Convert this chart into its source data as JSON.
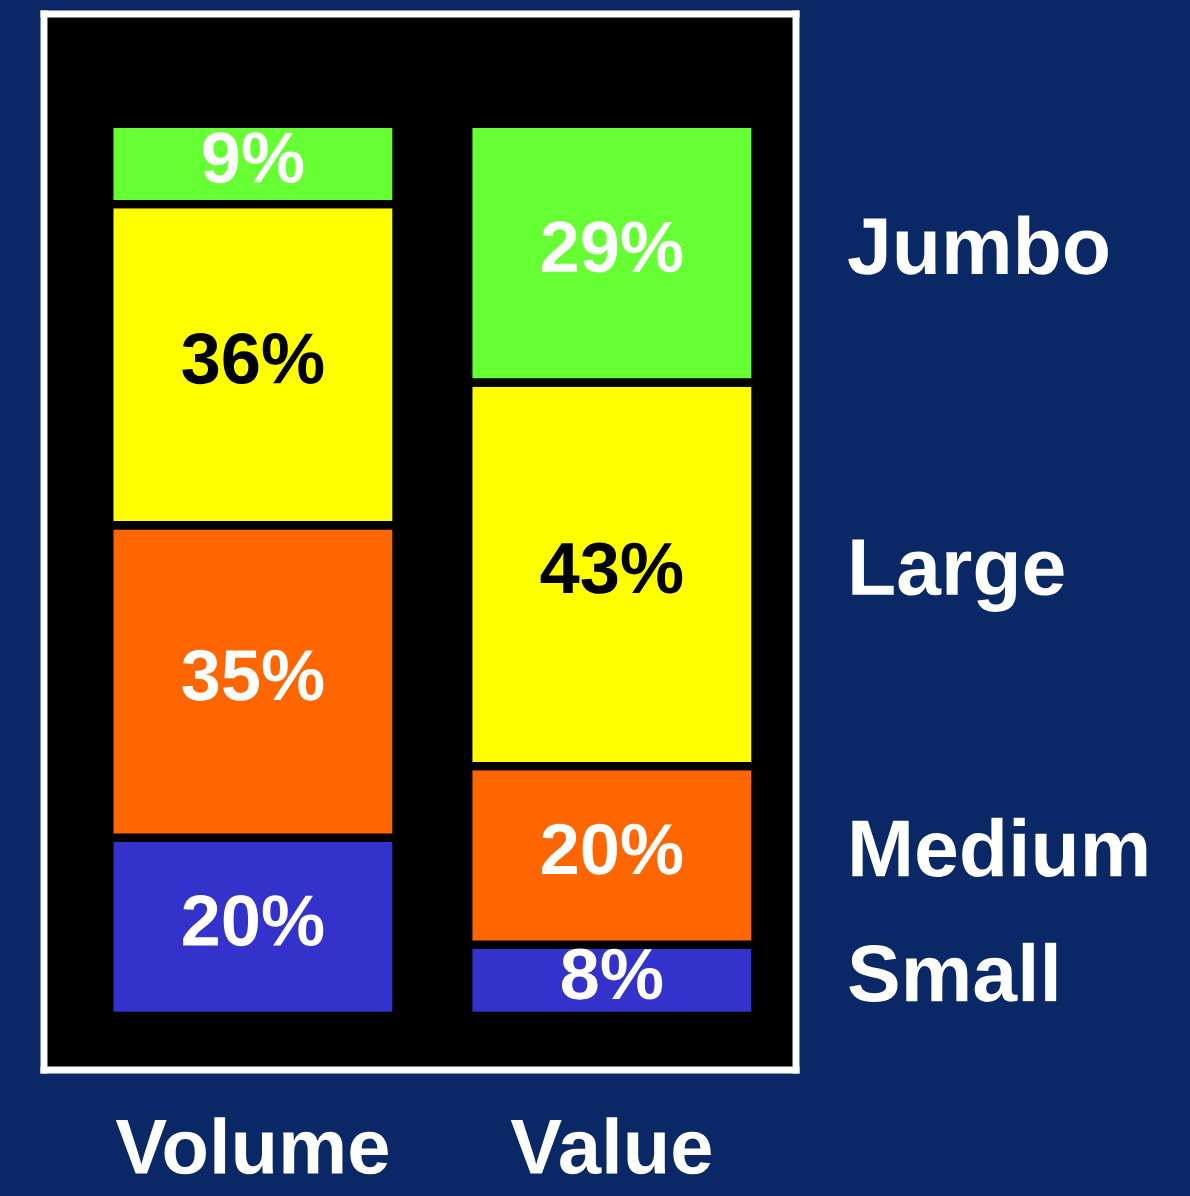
{
  "chart_data": {
    "type": "bar",
    "stacked": true,
    "categories": [
      "Volume",
      "Value"
    ],
    "series": [
      {
        "name": "Small",
        "color": "#3333cc",
        "values": [
          20,
          8
        ],
        "value_labels": [
          "20%",
          "8%"
        ]
      },
      {
        "name": "Medium",
        "color": "#ff6600",
        "values": [
          35,
          20
        ],
        "value_labels": [
          "35%",
          "20%"
        ]
      },
      {
        "name": "Large",
        "color": "#ffff00",
        "values": [
          36,
          43
        ],
        "value_labels": [
          "36%",
          "43%"
        ]
      },
      {
        "name": "Jumbo",
        "color": "#66ff33",
        "values": [
          9,
          29
        ],
        "value_labels": [
          "9%",
          "29%"
        ]
      }
    ]
  }
}
